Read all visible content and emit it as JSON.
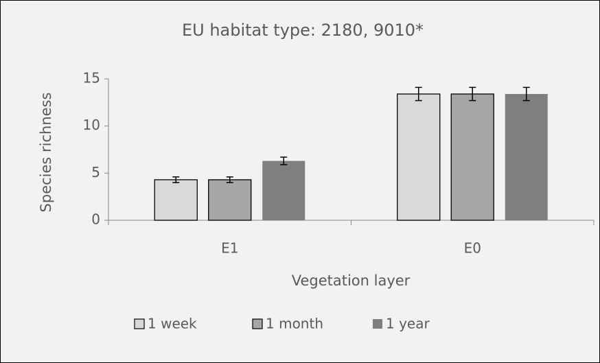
{
  "chart_data": {
    "type": "bar",
    "title": "EU habitat type: 2180, 9010*",
    "x_label": "Vegetation layer",
    "y_label": "Species richness",
    "categories": [
      "E1",
      "E0"
    ],
    "series": [
      {
        "name": "1 week",
        "color": "#d9d9d9",
        "values": [
          4.3,
          13.4
        ],
        "errors": [
          0.3,
          0.7
        ]
      },
      {
        "name": "1 month",
        "color": "#a6a6a6",
        "values": [
          4.3,
          13.4
        ],
        "errors": [
          0.3,
          0.7
        ]
      },
      {
        "name": "1 year",
        "color": "#7f7f7f",
        "values": [
          6.3,
          13.4
        ],
        "errors": [
          0.4,
          0.7
        ]
      }
    ],
    "ylim": [
      0,
      15
    ],
    "yticks": [
      0,
      5,
      10,
      15
    ],
    "grid": false,
    "legend": "bottom"
  }
}
